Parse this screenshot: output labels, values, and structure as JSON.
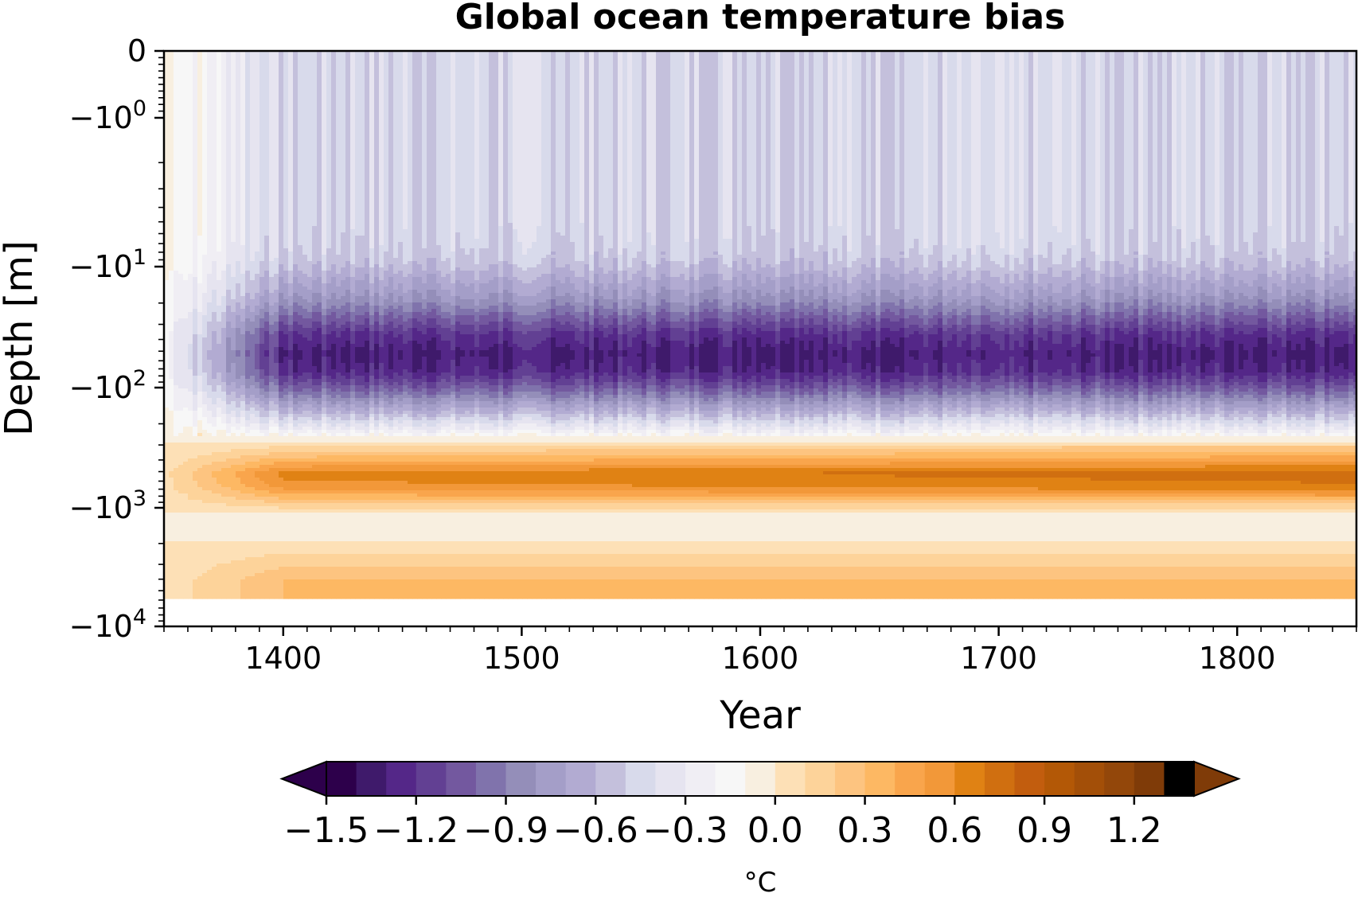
{
  "chart_data": {
    "type": "heatmap",
    "title": "Global ocean temperature bias",
    "xlabel": "Year",
    "ylabel": "Depth [m]",
    "xlim": [
      1350,
      1850
    ],
    "xticks": [
      1400,
      1500,
      1600,
      1700,
      1800
    ],
    "x_tick_labels": [
      "1400",
      "1500",
      "1600",
      "1700",
      "1800"
    ],
    "y_scale": "symlog",
    "ylim": [
      -10000,
      0
    ],
    "yticks": [
      0,
      -1,
      -10,
      -100,
      -1000,
      -10000
    ],
    "y_tick_labels": [
      {
        "base": "0",
        "exp": ""
      },
      {
        "base": "−10",
        "exp": "0"
      },
      {
        "base": "−10",
        "exp": "1"
      },
      {
        "base": "−10",
        "exp": "2"
      },
      {
        "base": "−10",
        "exp": "3"
      },
      {
        "base": "−10",
        "exp": "4"
      }
    ],
    "grid": false,
    "data_depth_max": -5500,
    "bias_profile": [
      {
        "depth": 0,
        "value": -0.45
      },
      {
        "depth": -2,
        "value": -0.45
      },
      {
        "depth": -5,
        "value": -0.45
      },
      {
        "depth": -8,
        "value": -0.5
      },
      {
        "depth": -12,
        "value": -0.65
      },
      {
        "depth": -18,
        "value": -0.8
      },
      {
        "depth": -25,
        "value": -1.0
      },
      {
        "depth": -35,
        "value": -1.2
      },
      {
        "depth": -50,
        "value": -1.3
      },
      {
        "depth": -70,
        "value": -1.25
      },
      {
        "depth": -100,
        "value": -1.0
      },
      {
        "depth": -130,
        "value": -0.75
      },
      {
        "depth": -180,
        "value": -0.45
      },
      {
        "depth": -240,
        "value": -0.15
      },
      {
        "depth": -300,
        "value": 0.1
      },
      {
        "depth": -400,
        "value": 0.4
      },
      {
        "depth": -500,
        "value": 0.65
      },
      {
        "depth": -650,
        "value": 0.55
      },
      {
        "depth": -850,
        "value": 0.25
      },
      {
        "depth": -1100,
        "value": -0.05
      },
      {
        "depth": -1500,
        "value": -0.1
      },
      {
        "depth": -2000,
        "value": 0.05
      },
      {
        "depth": -3000,
        "value": 0.2
      },
      {
        "depth": -4000,
        "value": 0.3
      },
      {
        "depth": -5500,
        "value": 0.3
      }
    ],
    "spinup_end_year": 1400,
    "colorbar": {
      "label": "°C",
      "levels": [
        -1.5,
        -1.4,
        -1.3,
        -1.2,
        -1.1,
        -1.0,
        -0.9,
        -0.8,
        -0.7,
        -0.6,
        -0.5,
        -0.4,
        -0.3,
        -0.2,
        -0.1,
        0.0,
        0.1,
        0.2,
        0.3,
        0.4,
        0.5,
        0.6,
        0.7,
        0.8,
        0.9,
        1.0,
        1.1,
        1.2,
        1.3,
        1.4
      ],
      "ticks": [
        -1.5,
        -1.2,
        -0.9,
        -0.6,
        -0.3,
        0.0,
        0.3,
        0.6,
        0.9,
        1.2
      ],
      "tick_labels": [
        "−1.5",
        "−1.2",
        "−0.9",
        "−0.6",
        "−0.3",
        "0.0",
        "0.3",
        "0.6",
        "0.9",
        "1.2"
      ],
      "colors": [
        "#2d004b",
        "#3f1a6b",
        "#542788",
        "#624093",
        "#73589f",
        "#8073ac",
        "#948eb9",
        "#a49ec8",
        "#b2abd2",
        "#c4c0dc",
        "#d8daeb",
        "#e6e4f0",
        "#f0eef4",
        "#f7f7f7",
        "#f8efe0",
        "#fde0b6",
        "#fdd39a",
        "#fdc480",
        "#fdb863",
        "#f9a54c",
        "#f29839",
        "#e08214",
        "#d06f10",
        "#c25d0e",
        "#b35806",
        "#a34f08",
        "#93470a",
        "#7f3b08"
      ],
      "extend": "both",
      "under_color": "#2d004b",
      "over_color": "#7f3b08"
    }
  }
}
